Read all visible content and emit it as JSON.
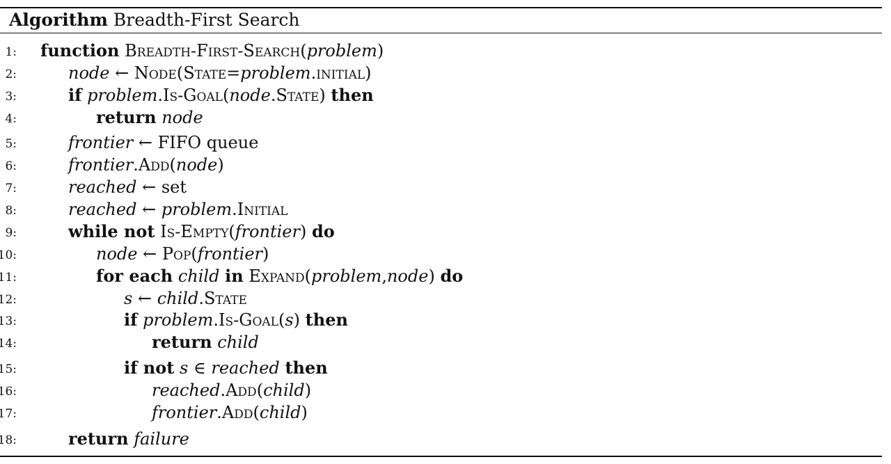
{
  "caption": {
    "label": "Algorithm",
    "title": "Breadth-First Search"
  },
  "lines": [
    {
      "n": "1:",
      "indent": 0,
      "parts": [
        [
          "kw",
          "function"
        ],
        [
          "t",
          " "
        ],
        [
          "sc",
          "Breadth-First-Search"
        ],
        [
          "t",
          "("
        ],
        [
          "var",
          "problem"
        ],
        [
          "t",
          ")"
        ]
      ]
    },
    {
      "n": "2:",
      "indent": 1,
      "parts": [
        [
          "var",
          "node"
        ],
        [
          "t",
          " ← "
        ],
        [
          "sc",
          "Node"
        ],
        [
          "t",
          "("
        ],
        [
          "sc",
          "State"
        ],
        [
          "t",
          "="
        ],
        [
          "var",
          "problem"
        ],
        [
          "t",
          "."
        ],
        [
          "sc",
          "initial"
        ],
        [
          "t",
          ")"
        ]
      ]
    },
    {
      "n": "3:",
      "indent": 1,
      "parts": [
        [
          "kw",
          "if"
        ],
        [
          "t",
          " "
        ],
        [
          "var",
          "problem"
        ],
        [
          "t",
          "."
        ],
        [
          "sc",
          "Is-Goal"
        ],
        [
          "t",
          "("
        ],
        [
          "var",
          "node"
        ],
        [
          "t",
          "."
        ],
        [
          "sc",
          "State"
        ],
        [
          "t",
          ") "
        ],
        [
          "kw",
          "then"
        ]
      ]
    },
    {
      "n": "4:",
      "indent": 2,
      "parts": [
        [
          "kw",
          "return"
        ],
        [
          "t",
          " "
        ],
        [
          "var",
          "node"
        ]
      ]
    },
    {
      "n": "5:",
      "indent": 1,
      "parts": [
        [
          "var",
          "frontier"
        ],
        [
          "t",
          " ← FIFO queue"
        ]
      ]
    },
    {
      "n": "6:",
      "indent": 1,
      "parts": [
        [
          "var",
          "frontier"
        ],
        [
          "t",
          "."
        ],
        [
          "sc",
          "Add"
        ],
        [
          "t",
          "("
        ],
        [
          "var",
          "node"
        ],
        [
          "t",
          ")"
        ]
      ]
    },
    {
      "n": "7:",
      "indent": 1,
      "parts": [
        [
          "var",
          "reached"
        ],
        [
          "t",
          " ← set"
        ]
      ]
    },
    {
      "n": "8:",
      "indent": 1,
      "parts": [
        [
          "var",
          "reached"
        ],
        [
          "t",
          " ← "
        ],
        [
          "var",
          "problem"
        ],
        [
          "t",
          "."
        ],
        [
          "sc",
          "Initial"
        ]
      ]
    },
    {
      "n": "9:",
      "indent": 1,
      "parts": [
        [
          "kw",
          "while not"
        ],
        [
          "t",
          " "
        ],
        [
          "sc",
          "Is-Empty"
        ],
        [
          "t",
          "("
        ],
        [
          "var",
          "frontier"
        ],
        [
          "t",
          ") "
        ],
        [
          "kw",
          "do"
        ]
      ]
    },
    {
      "n": "10:",
      "indent": 2,
      "parts": [
        [
          "var",
          "node"
        ],
        [
          "t",
          " ← "
        ],
        [
          "sc",
          "Pop"
        ],
        [
          "t",
          "("
        ],
        [
          "var",
          "frontier"
        ],
        [
          "t",
          ")"
        ]
      ]
    },
    {
      "n": "11:",
      "indent": 2,
      "parts": [
        [
          "kw",
          "for each"
        ],
        [
          "t",
          " "
        ],
        [
          "var",
          "child"
        ],
        [
          "t",
          " "
        ],
        [
          "kw",
          "in"
        ],
        [
          "t",
          " "
        ],
        [
          "sc",
          "Expand"
        ],
        [
          "t",
          "("
        ],
        [
          "var",
          "problem"
        ],
        [
          "t",
          ","
        ],
        [
          "var",
          "node"
        ],
        [
          "t",
          ") "
        ],
        [
          "kw",
          "do"
        ]
      ]
    },
    {
      "n": "12:",
      "indent": 3,
      "parts": [
        [
          "var",
          "s"
        ],
        [
          "t",
          " ← "
        ],
        [
          "var",
          "child"
        ],
        [
          "t",
          "."
        ],
        [
          "sc",
          "State"
        ]
      ]
    },
    {
      "n": "13:",
      "indent": 3,
      "parts": [
        [
          "kw",
          "if"
        ],
        [
          "t",
          " "
        ],
        [
          "var",
          "problem"
        ],
        [
          "t",
          "."
        ],
        [
          "sc",
          "Is-Goal"
        ],
        [
          "t",
          "("
        ],
        [
          "var",
          "s"
        ],
        [
          "t",
          ") "
        ],
        [
          "kw",
          "then"
        ]
      ]
    },
    {
      "n": "14:",
      "indent": 4,
      "parts": [
        [
          "kw",
          "return"
        ],
        [
          "t",
          " "
        ],
        [
          "var",
          "child"
        ]
      ]
    },
    {
      "n": "15:",
      "indent": 3,
      "parts": [
        [
          "kw",
          "if not"
        ],
        [
          "t",
          " "
        ],
        [
          "var",
          "s"
        ],
        [
          "t",
          " ∈ "
        ],
        [
          "var",
          "reached"
        ],
        [
          "t",
          " "
        ],
        [
          "kw",
          "then"
        ]
      ]
    },
    {
      "n": "16:",
      "indent": 4,
      "parts": [
        [
          "var",
          "reached"
        ],
        [
          "t",
          "."
        ],
        [
          "sc",
          "Add"
        ],
        [
          "t",
          "("
        ],
        [
          "var",
          "child"
        ],
        [
          "t",
          ")"
        ]
      ]
    },
    {
      "n": "17:",
      "indent": 4,
      "parts": [
        [
          "var",
          "frontier"
        ],
        [
          "t",
          "."
        ],
        [
          "sc",
          "Add"
        ],
        [
          "t",
          "("
        ],
        [
          "var",
          "child"
        ],
        [
          "t",
          ")"
        ]
      ]
    },
    {
      "n": "18:",
      "indent": 1,
      "parts": [
        [
          "kw",
          "return"
        ],
        [
          "t",
          " "
        ],
        [
          "var",
          "failure"
        ]
      ]
    }
  ]
}
